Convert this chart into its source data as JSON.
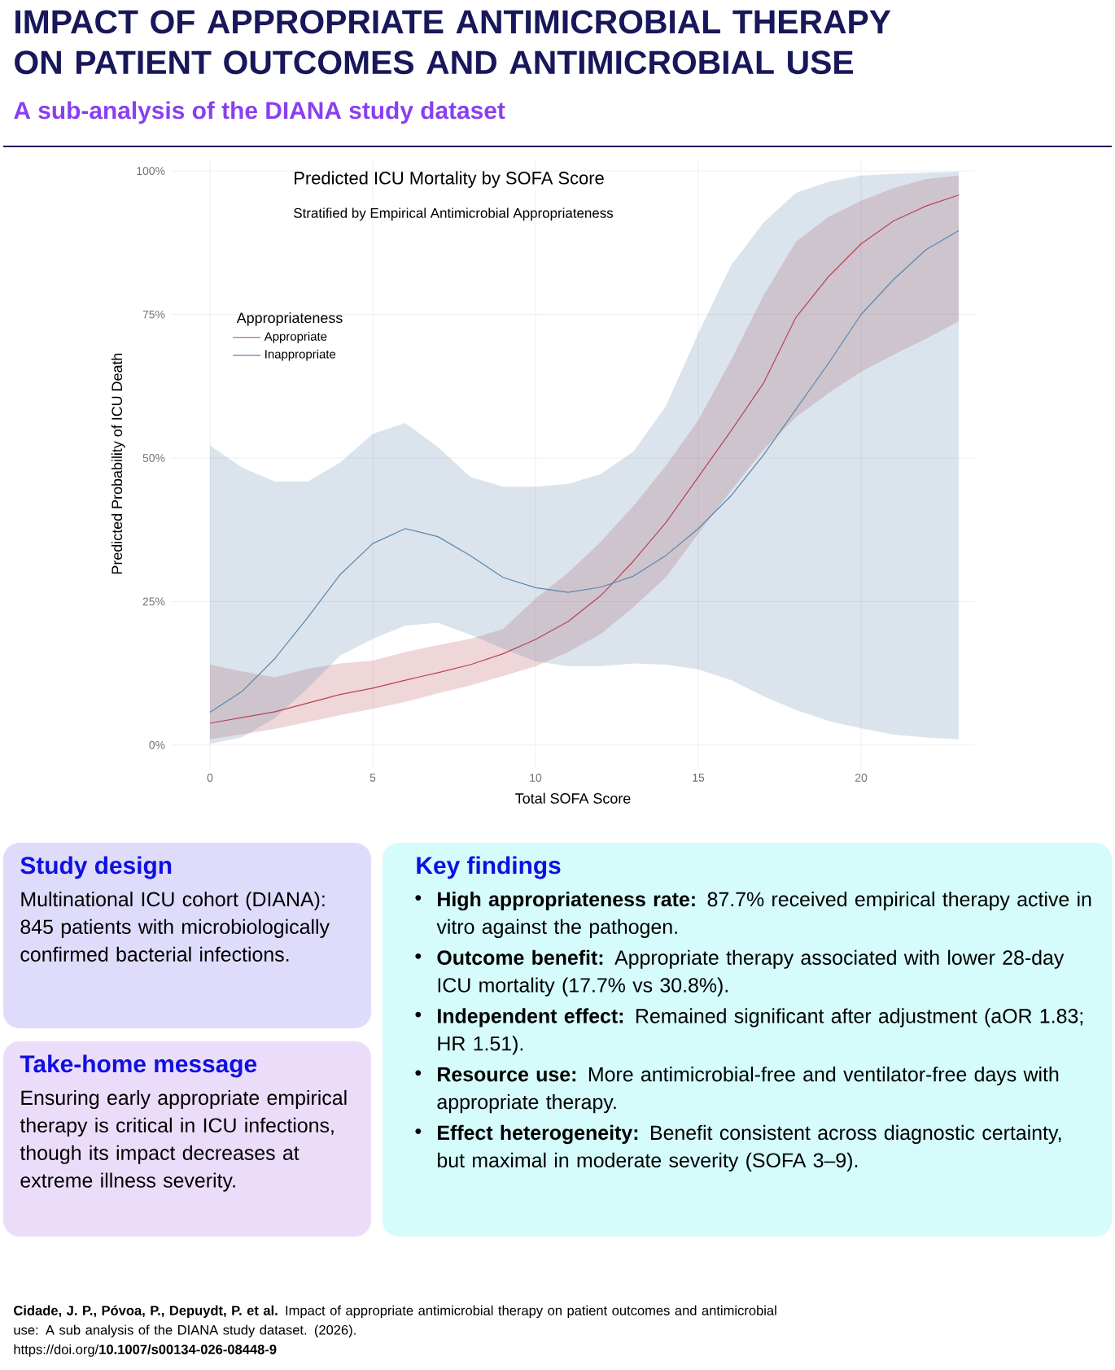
{
  "chart_data": [
    {
      "type": "other",
      "title": "IMPACT OF APPROPRIATE ANTIMICROBIAL THERAPY ON PATIENT OUTCOMES AND ANTIMICROBIAL USE",
      "subtitle": "A sub-analysis of the DIANA study dataset",
      "annotations": [
        "**Cidade, J. P., Póvoa, P., Depuydt, P. et al.** Impact of appropriate antimicrobial therapy on patient outcomes and antimicrobial use: A sub analysis of the DIANA study dataset. (2026).",
        "https://doi.org/**10.1007/s00134-026-08448-9**"
      ]
    },
    {
      "type": "line",
      "title": "Predicted ICU Mortality by SOFA Score",
      "subtitle": "Stratified by Empirical Antimicrobial Appropriateness",
      "xlabel": "Total SOFA Score",
      "ylabel": "Predicted Probability of ICU Death",
      "legend_title": "Appropriateness",
      "legend": "top left",
      "grid": true,
      "xlim": [
        -1.2,
        23.5
      ],
      "ylim": [
        -4,
        102
      ],
      "xticks": [
        0,
        5,
        10,
        15,
        20
      ],
      "yticks": [
        {
          "value": 0,
          "label": "0%"
        },
        {
          "value": 25,
          "label": "25%"
        },
        {
          "value": 50,
          "label": "50%"
        },
        {
          "value": 75,
          "label": "75%"
        },
        {
          "value": 100,
          "label": "100%"
        }
      ],
      "x": [
        0,
        1,
        2,
        3,
        4,
        5,
        6,
        7,
        8,
        9,
        10,
        11,
        12,
        13,
        14,
        15,
        16,
        17,
        18,
        19,
        20,
        21,
        22,
        23
      ],
      "series": [
        {
          "name": "Appropriate",
          "color": "#b8434f",
          "values": [
            3.8,
            4.8,
            5.8,
            7.3,
            8.8,
            9.9,
            11.3,
            12.6,
            14,
            15.9,
            18.4,
            21.5,
            26,
            32,
            38.7,
            46.7,
            54.7,
            63,
            74.5,
            81.6,
            87.3,
            91.3,
            93.9,
            95.8
          ],
          "lower": [
            1,
            1.9,
            2.8,
            4,
            5.2,
            6.3,
            7.5,
            9,
            10.4,
            12,
            13.7,
            16.2,
            19.3,
            24,
            29.2,
            36.8,
            44.3,
            51.4,
            57.1,
            61.3,
            65,
            68,
            70.8,
            73.8
          ],
          "upper": [
            14,
            12.8,
            11.8,
            13.3,
            14.2,
            14.7,
            16.2,
            17.4,
            18.5,
            20.2,
            25.5,
            30,
            35.4,
            41.6,
            48.6,
            56.6,
            67,
            78.3,
            87.7,
            92,
            94.8,
            97,
            98.6,
            99.2
          ]
        },
        {
          "name": "Inappropriate",
          "color": "#5a86ad",
          "values": [
            5.7,
            9.4,
            15.1,
            22.2,
            29.7,
            35.1,
            37.7,
            36.3,
            33,
            29.2,
            27.4,
            26.6,
            27.5,
            29.4,
            33,
            37.7,
            43.4,
            50.5,
            58.5,
            66.5,
            75,
            81.1,
            86.3,
            89.6
          ],
          "lower": [
            0.2,
            1.4,
            4.7,
            9.9,
            15.6,
            18.5,
            20.8,
            21.3,
            19.2,
            16.8,
            14.6,
            13.7,
            13.7,
            14.2,
            14,
            13.2,
            11.3,
            8.5,
            6.1,
            4.2,
            2.9,
            1.8,
            1.3,
            1.0
          ],
          "upper": [
            52.2,
            48.3,
            45.9,
            45.9,
            49.2,
            54.2,
            56.1,
            51.9,
            46.7,
            45,
            45,
            45.5,
            47.2,
            51.1,
            59,
            71.7,
            83.5,
            91,
            96.2,
            98.1,
            99.2,
            99.5,
            99.7,
            99.9
          ]
        }
      ]
    },
    {
      "type": "other",
      "title": "Study design",
      "annotations": [
        "Multinational ICU cohort (DIANA): 845 patients with microbiologically confirmed bacterial infections."
      ]
    },
    {
      "type": "other",
      "title": "Take-home message",
      "annotations": [
        "Ensuring early appropriate empirical therapy is critical in ICU infections,  though its impact decreases at extreme illness severity."
      ]
    },
    {
      "type": "other",
      "title": "Key findings",
      "annotations": [
        "**High appropriateness rate:** 87.7% received empirical therapy active in vitro against the pathogen.",
        "**Outcome benefit:** Appropriate therapy associated with lower 28-day ICU mortality (17.7% vs 30.8%).",
        "**Independent effect:** Remained significant after adjustment (aOR 1.83; HR 1.51).",
        "**Resource use:** More antimicrobial-free and ventilator-free days with appropriate therapy.",
        "**Effect heterogeneity:** Benefit consistent across diagnostic certainty, but maximal in moderate severity (SOFA 3–9)."
      ]
    }
  ]
}
